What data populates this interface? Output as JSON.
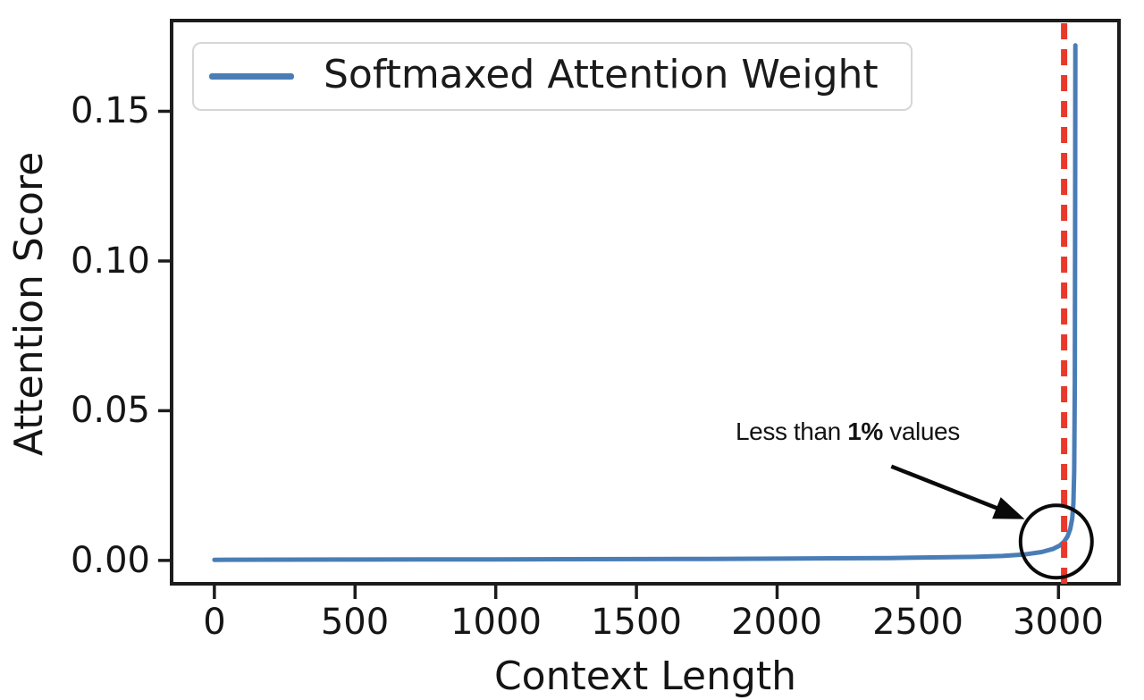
{
  "chart_data": {
    "type": "line",
    "xlabel": "Context Length",
    "ylabel": "Attention Score",
    "legend_label": "Softmaxed Attention Weight",
    "legend_position": "upper left",
    "grid": false,
    "xlim": [
      -152,
      3215
    ],
    "ylim": [
      -0.0078,
      0.1803
    ],
    "xticks": [
      0,
      500,
      1000,
      1500,
      2000,
      2500,
      3000
    ],
    "xtick_labels": [
      "0",
      "500",
      "1000",
      "1500",
      "2000",
      "2500",
      "3000"
    ],
    "yticks": [
      0,
      0.05,
      0.1,
      0.15
    ],
    "ytick_labels": [
      "0.00",
      "0.05",
      "0.10",
      "0.15"
    ],
    "colors": {
      "series_blue": "#4a7db6",
      "threshold_red": "#e8392b",
      "axis_black": "#1c1c1c",
      "legend_border_gray": "#d6d6d6"
    },
    "series": [
      {
        "name": "Softmaxed Attention Weight",
        "color": "#4a7db6",
        "x": [
          0,
          250,
          500,
          750,
          1000,
          1250,
          1500,
          1750,
          2000,
          2200,
          2400,
          2550,
          2700,
          2800,
          2880,
          2940,
          2980,
          3005,
          3020,
          3032,
          3042,
          3049,
          3053,
          3056,
          3058,
          3059,
          3060
        ],
        "y": [
          0.0002,
          0.00025,
          0.0003,
          0.00032,
          0.00035,
          0.0004,
          0.00045,
          0.0005,
          0.0006,
          0.0007,
          0.0008,
          0.001,
          0.0012,
          0.0015,
          0.002,
          0.0028,
          0.0038,
          0.005,
          0.0063,
          0.008,
          0.0105,
          0.014,
          0.019,
          0.03,
          0.06,
          0.11,
          0.172
        ]
      }
    ],
    "vline": {
      "x": 3020,
      "color": "#e8392b",
      "style": "dashed"
    },
    "annotation": {
      "prefix": "Less than ",
      "bold": "1%",
      "suffix": " values",
      "arrow": {
        "from_x": 2406,
        "from_y": 0.0314,
        "to_x": 2880,
        "to_y": 0.0138
      },
      "circle": {
        "cx": 2992,
        "cy": 0.0063,
        "rx": 127,
        "ry": 0.0121
      }
    }
  }
}
